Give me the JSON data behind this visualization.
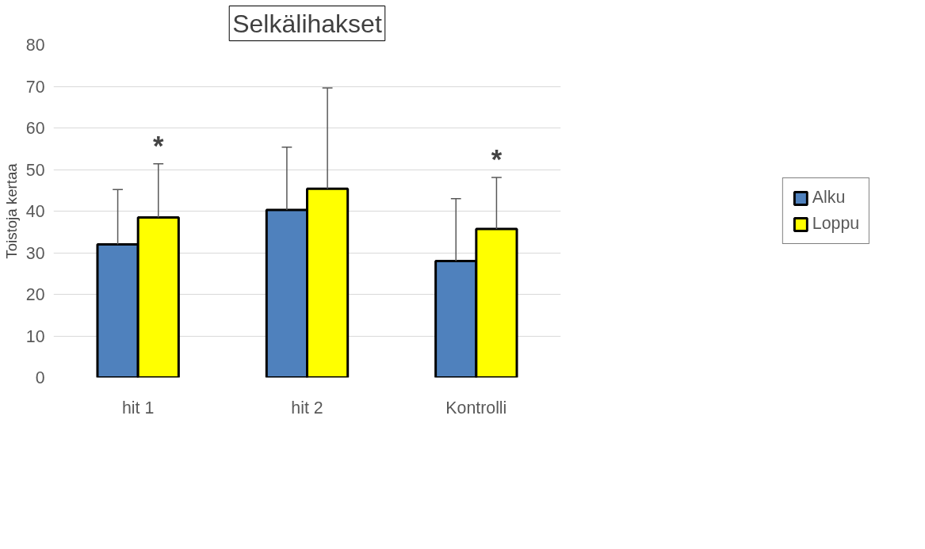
{
  "chart_data": {
    "type": "bar",
    "title": "Selkälihakset",
    "ylabel": "Toistoja kertaa",
    "categories": [
      "hit 1",
      "hit 2",
      "Kontrolli"
    ],
    "series": [
      {
        "name": "Alku",
        "color": "#4f81bd",
        "values": [
          32,
          40.3,
          28
        ],
        "errors": [
          [
            32,
            45.2
          ],
          [
            40.3,
            55.4
          ],
          [
            28,
            43
          ]
        ]
      },
      {
        "name": "Loppu",
        "color": "#ffff00",
        "values": [
          38.5,
          45.4,
          35.7
        ],
        "errors": [
          [
            38.5,
            51.4
          ],
          [
            45.4,
            69.6
          ],
          [
            35.7,
            48.1
          ]
        ],
        "value_labels": [
          "*",
          null,
          "*"
        ]
      }
    ],
    "ylim": [
      0,
      80
    ],
    "yticks": [
      0,
      10,
      20,
      30,
      40,
      50,
      60,
      70,
      80
    ],
    "grid": "y",
    "legend": "right"
  }
}
